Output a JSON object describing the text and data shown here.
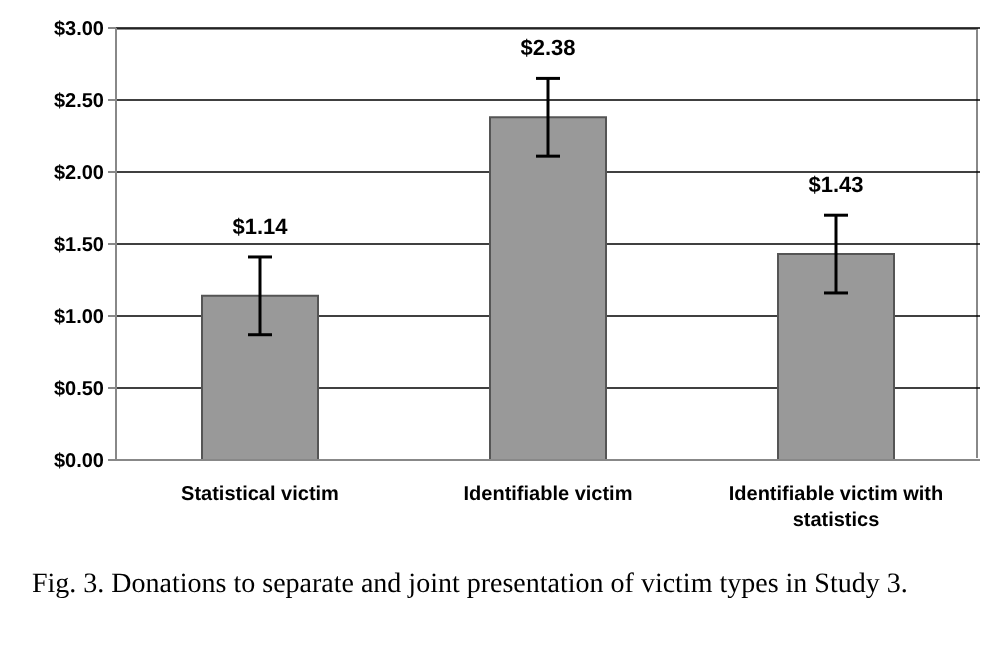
{
  "chart_data": {
    "type": "bar",
    "categories": [
      "Statistical victim",
      "Identifiable victim",
      "Identifiable victim with statistics"
    ],
    "values": [
      1.14,
      2.38,
      1.43
    ],
    "errors": [
      0.27,
      0.27,
      0.27
    ],
    "value_labels": [
      "$1.14",
      "$2.38",
      "$1.43"
    ],
    "color": "#999999",
    "ylim": [
      0,
      3
    ],
    "yticks": [
      {
        "value": 0,
        "label": "$0.00"
      },
      {
        "value": 0.5,
        "label": "$0.50"
      },
      {
        "value": 1,
        "label": "$1.00"
      },
      {
        "value": 1.5,
        "label": "$1.50"
      },
      {
        "value": 2,
        "label": "$2.00"
      },
      {
        "value": 2.5,
        "label": "$2.50"
      },
      {
        "value": 3,
        "label": "$3.00"
      }
    ],
    "grid": "y",
    "annotations": [
      "Fig. 3.  Donations to separate and joint presentation of victim types in Study 3."
    ]
  }
}
